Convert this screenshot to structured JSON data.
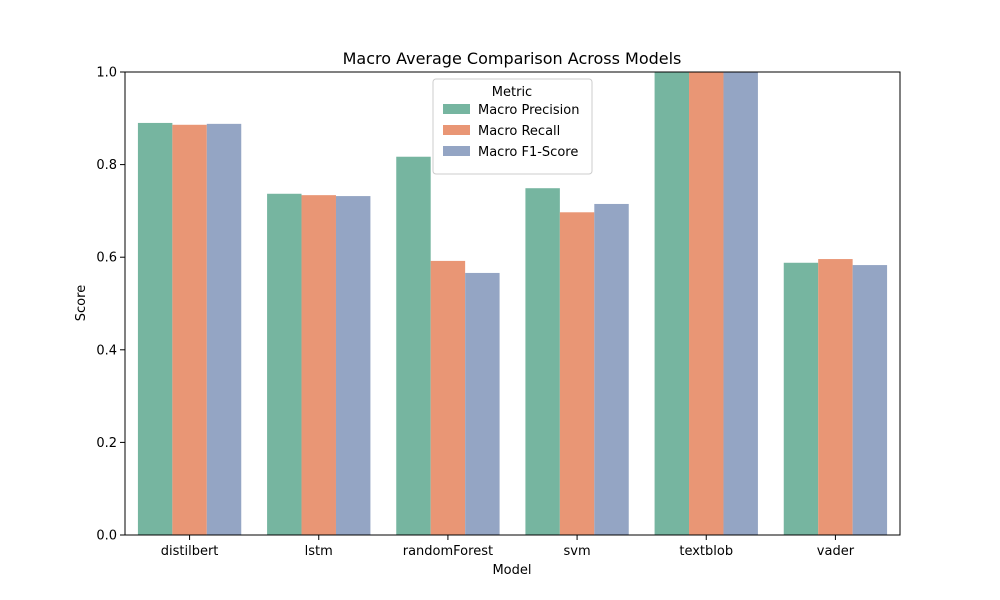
{
  "chart_data": {
    "type": "bar",
    "title": "Macro Average Comparison Across Models",
    "xlabel": "Model",
    "ylabel": "Score",
    "ylim": [
      0,
      1.0
    ],
    "yticks": [
      "0.0",
      "0.2",
      "0.4",
      "0.6",
      "0.8",
      "1.0"
    ],
    "categories": [
      "distilbert",
      "lstm",
      "randomForest",
      "svm",
      "textblob",
      "vader"
    ],
    "series": [
      {
        "name": "Macro Precision",
        "color": "#76b5a0",
        "values": [
          0.89,
          0.737,
          0.817,
          0.749,
          1.0,
          0.588
        ]
      },
      {
        "name": "Macro Recall",
        "color": "#e99675",
        "values": [
          0.886,
          0.734,
          0.592,
          0.697,
          1.0,
          0.596
        ]
      },
      {
        "name": "Macro F1-Score",
        "color": "#94a5c4",
        "values": [
          0.888,
          0.732,
          0.566,
          0.715,
          1.0,
          0.583
        ]
      }
    ],
    "legend": {
      "title": "Metric",
      "position": "top-center"
    },
    "grid": false
  }
}
